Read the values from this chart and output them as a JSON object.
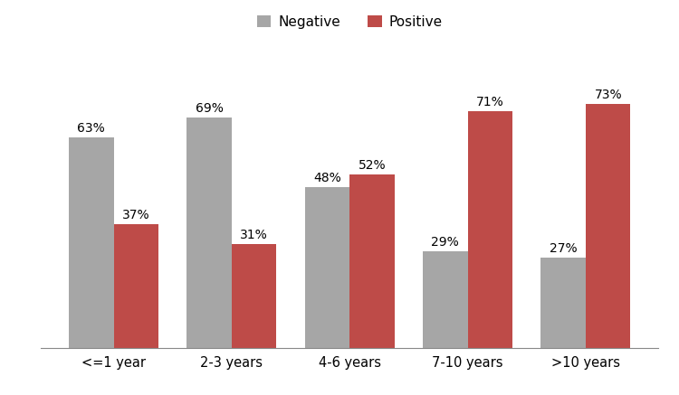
{
  "categories": [
    "<=1 year",
    "2-3 years",
    "4-6 years",
    "7-10 years",
    ">10 years"
  ],
  "negative_values": [
    63,
    69,
    48,
    29,
    27
  ],
  "positive_values": [
    37,
    31,
    52,
    71,
    73
  ],
  "negative_color": "#a6a6a6",
  "positive_color": "#be4b48",
  "negative_label": "Negative",
  "positive_label": "Positive",
  "bar_width": 0.38,
  "ylim": [
    0,
    90
  ],
  "background_color": "#ffffff",
  "legend_fontsize": 11,
  "tick_fontsize": 10.5,
  "value_label_fontsize": 10
}
